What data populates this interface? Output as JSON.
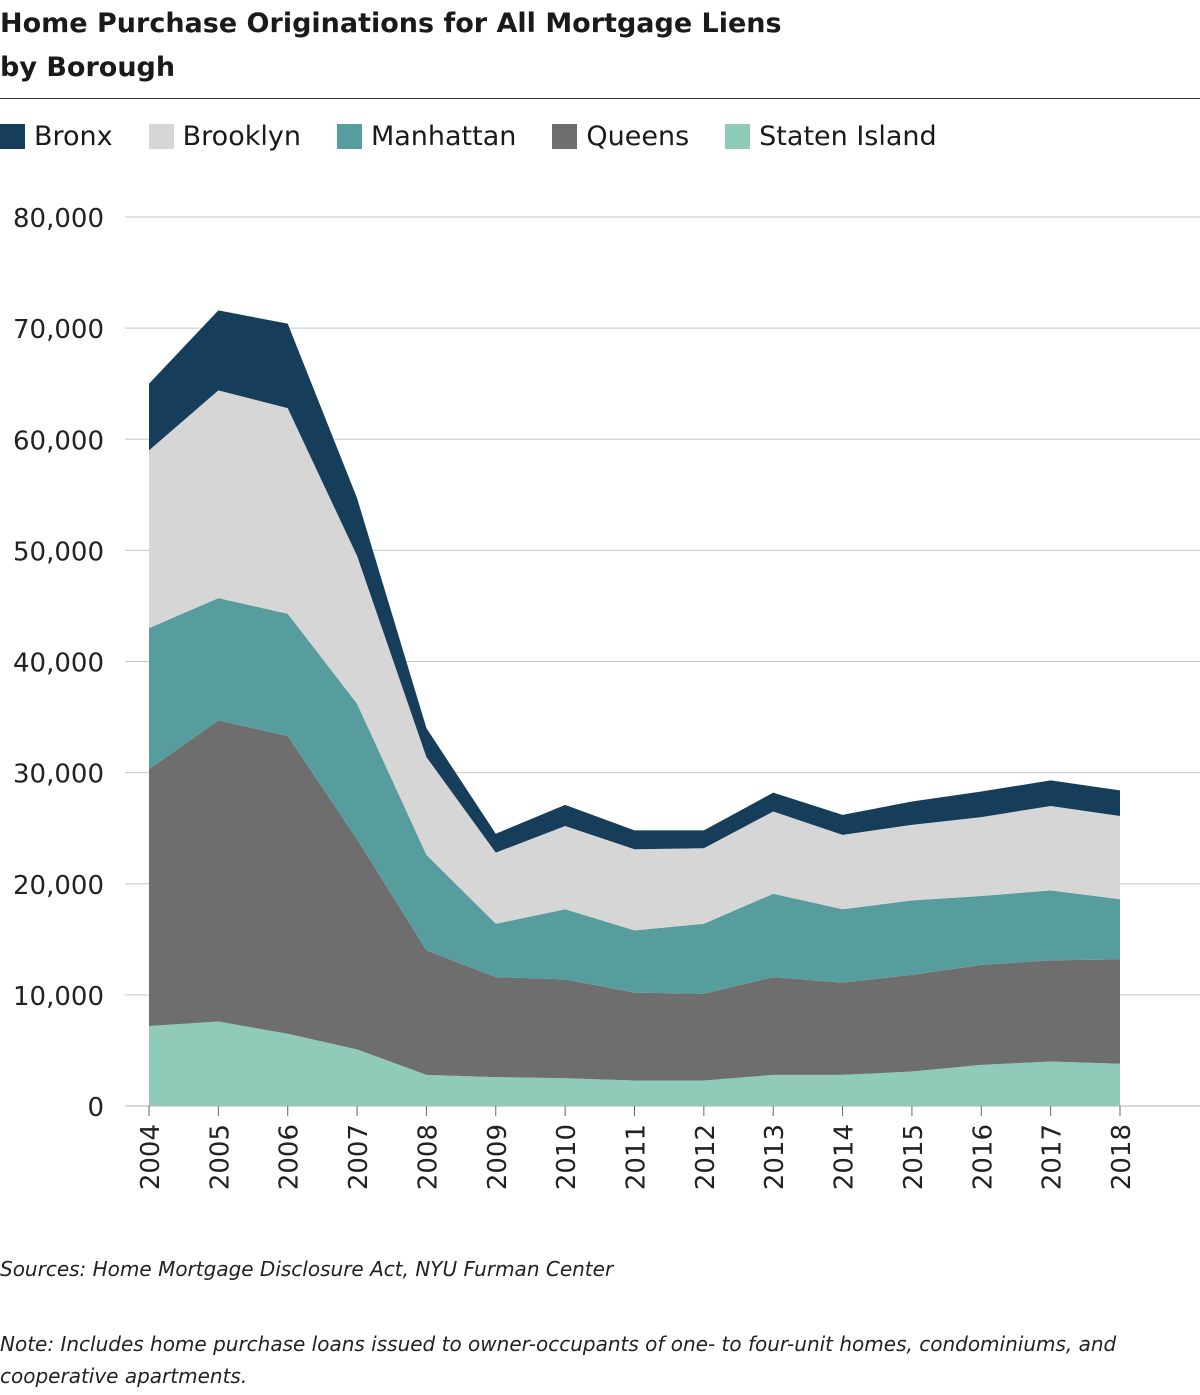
{
  "header": {
    "title_line1": "Home Purchase Originations for All Mortgage Liens",
    "title_line2": "by Borough"
  },
  "legend": [
    {
      "label": "Bronx",
      "color": "#163e5a"
    },
    {
      "label": "Brooklyn",
      "color": "#d6d6d6"
    },
    {
      "label": "Manhattan",
      "color": "#579d9e"
    },
    {
      "label": "Queens",
      "color": "#6e6e6e"
    },
    {
      "label": "Staten Island",
      "color": "#8fcbb8"
    }
  ],
  "footer": {
    "sources": "Sources: Home Mortgage Disclosure Act, NYU Furman Center",
    "note": "Note: Includes home purchase loans issued to owner-occupants of one- to four-unit homes, condominiums, and cooperative apartments."
  },
  "chart_data": {
    "type": "area",
    "stacked": true,
    "title": "Home Purchase Originations for All Mortgage Liens by Borough",
    "x": [
      "2004",
      "2005",
      "2006",
      "2007",
      "2008",
      "2009",
      "2010",
      "2011",
      "2012",
      "2013",
      "2014",
      "2015",
      "2016",
      "2017",
      "2018"
    ],
    "ylim": [
      0,
      80000
    ],
    "yticks": [
      0,
      10000,
      20000,
      30000,
      40000,
      50000,
      60000,
      70000,
      80000
    ],
    "ytick_labels": [
      "0",
      "10,000",
      "20,000",
      "30,000",
      "40,000",
      "50,000",
      "60,000",
      "70,000",
      "80,000"
    ],
    "grid": true,
    "legend_position": "top-left",
    "series": [
      {
        "name": "Staten Island",
        "color": "#8fcbb8",
        "values": [
          7200,
          7600,
          6500,
          5100,
          2800,
          2600,
          2500,
          2300,
          2300,
          2800,
          2800,
          3100,
          3700,
          4000,
          3800
        ]
      },
      {
        "name": "Queens",
        "color": "#6e6e6e",
        "values": [
          23100,
          27100,
          26800,
          18900,
          11200,
          9000,
          8900,
          7900,
          7800,
          8800,
          8300,
          8700,
          9000,
          9100,
          9400
        ]
      },
      {
        "name": "Manhattan",
        "color": "#579d9e",
        "values": [
          12700,
          11000,
          11000,
          12200,
          8600,
          4800,
          6300,
          5600,
          6300,
          7500,
          6600,
          6700,
          6200,
          6300,
          5400
        ]
      },
      {
        "name": "Brooklyn",
        "color": "#d6d6d6",
        "values": [
          16000,
          18700,
          18500,
          13300,
          8800,
          6400,
          7500,
          7300,
          6800,
          7400,
          6700,
          6800,
          7100,
          7600,
          7500
        ]
      },
      {
        "name": "Bronx",
        "color": "#163e5a",
        "values": [
          6000,
          7200,
          7600,
          5200,
          2600,
          1700,
          1900,
          1700,
          1600,
          1700,
          1800,
          2100,
          2300,
          2300,
          2300
        ]
      }
    ]
  }
}
